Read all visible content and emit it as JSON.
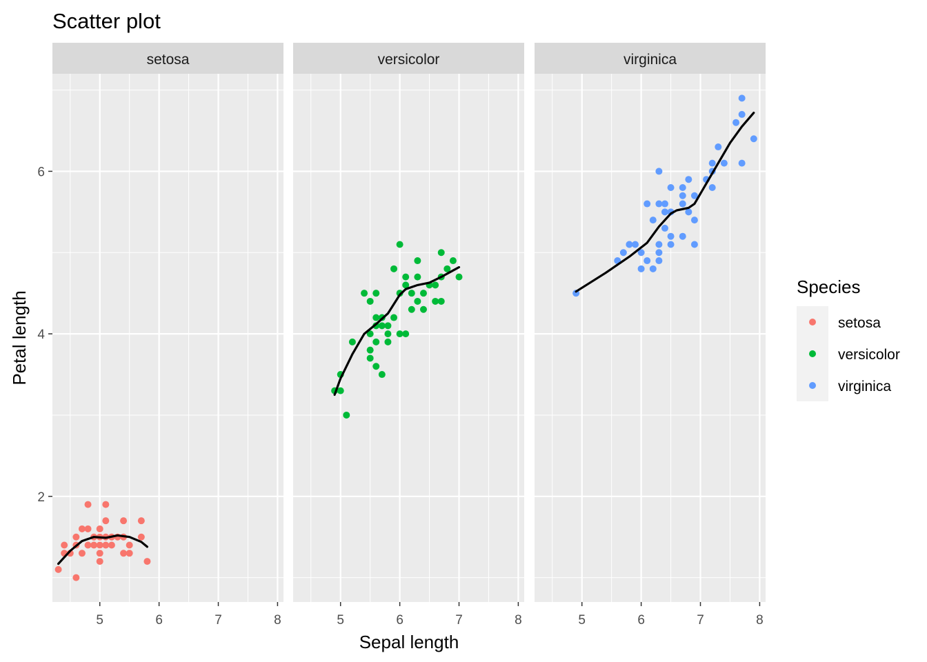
{
  "chart_data": {
    "type": "scatter",
    "title": "Scatter plot",
    "xlabel": "Sepal length",
    "ylabel": "Petal length",
    "xlim": [
      4.2,
      8.1
    ],
    "ylim": [
      0.7,
      7.2
    ],
    "x_ticks": [
      5,
      6,
      7,
      8
    ],
    "x_tick_labels": [
      "5",
      "6",
      "7",
      "8"
    ],
    "y_ticks": [
      2,
      4,
      6
    ],
    "y_tick_labels": [
      "2",
      "4",
      "6"
    ],
    "grid": true,
    "facet_by": "Species",
    "legend": {
      "title": "Species",
      "position": "right"
    },
    "series": [
      {
        "name": "setosa",
        "color": "#F8766D",
        "points": [
          [
            4.3,
            1.1
          ],
          [
            4.4,
            1.3
          ],
          [
            4.4,
            1.4
          ],
          [
            4.5,
            1.3
          ],
          [
            4.6,
            1.0
          ],
          [
            4.6,
            1.4
          ],
          [
            4.6,
            1.5
          ],
          [
            4.7,
            1.3
          ],
          [
            4.7,
            1.6
          ],
          [
            4.8,
            1.4
          ],
          [
            4.8,
            1.6
          ],
          [
            4.8,
            1.9
          ],
          [
            4.9,
            1.4
          ],
          [
            4.9,
            1.5
          ],
          [
            5.0,
            1.2
          ],
          [
            5.0,
            1.3
          ],
          [
            5.0,
            1.4
          ],
          [
            5.0,
            1.5
          ],
          [
            5.0,
            1.6
          ],
          [
            5.1,
            1.4
          ],
          [
            5.1,
            1.5
          ],
          [
            5.1,
            1.7
          ],
          [
            5.1,
            1.9
          ],
          [
            5.2,
            1.4
          ],
          [
            5.2,
            1.5
          ],
          [
            5.3,
            1.5
          ],
          [
            5.4,
            1.3
          ],
          [
            5.4,
            1.5
          ],
          [
            5.4,
            1.7
          ],
          [
            5.5,
            1.3
          ],
          [
            5.5,
            1.4
          ],
          [
            5.7,
            1.5
          ],
          [
            5.7,
            1.7
          ],
          [
            5.8,
            1.2
          ]
        ],
        "smooth": [
          [
            4.3,
            1.17
          ],
          [
            4.5,
            1.33
          ],
          [
            4.7,
            1.45
          ],
          [
            4.9,
            1.5
          ],
          [
            5.1,
            1.49
          ],
          [
            5.3,
            1.52
          ],
          [
            5.5,
            1.5
          ],
          [
            5.7,
            1.44
          ],
          [
            5.8,
            1.38
          ]
        ]
      },
      {
        "name": "versicolor",
        "color": "#00BA38",
        "points": [
          [
            4.9,
            3.3
          ],
          [
            5.0,
            3.3
          ],
          [
            5.0,
            3.5
          ],
          [
            5.1,
            3.0
          ],
          [
            5.2,
            3.9
          ],
          [
            5.4,
            4.5
          ],
          [
            5.5,
            3.7
          ],
          [
            5.5,
            3.8
          ],
          [
            5.5,
            4.0
          ],
          [
            5.5,
            4.4
          ],
          [
            5.6,
            3.6
          ],
          [
            5.6,
            3.9
          ],
          [
            5.6,
            4.1
          ],
          [
            5.6,
            4.2
          ],
          [
            5.6,
            4.5
          ],
          [
            5.7,
            3.5
          ],
          [
            5.7,
            4.1
          ],
          [
            5.7,
            4.2
          ],
          [
            5.8,
            3.9
          ],
          [
            5.8,
            4.0
          ],
          [
            5.8,
            4.1
          ],
          [
            5.9,
            4.2
          ],
          [
            5.9,
            4.8
          ],
          [
            6.0,
            4.0
          ],
          [
            6.0,
            4.5
          ],
          [
            6.0,
            5.1
          ],
          [
            6.1,
            4.0
          ],
          [
            6.1,
            4.6
          ],
          [
            6.1,
            4.7
          ],
          [
            6.2,
            4.3
          ],
          [
            6.2,
            4.5
          ],
          [
            6.3,
            4.4
          ],
          [
            6.3,
            4.7
          ],
          [
            6.3,
            4.9
          ],
          [
            6.4,
            4.3
          ],
          [
            6.4,
            4.5
          ],
          [
            6.5,
            4.6
          ],
          [
            6.6,
            4.4
          ],
          [
            6.6,
            4.6
          ],
          [
            6.7,
            4.4
          ],
          [
            6.7,
            4.7
          ],
          [
            6.7,
            5.0
          ],
          [
            6.8,
            4.8
          ],
          [
            6.9,
            4.9
          ],
          [
            7.0,
            4.7
          ]
        ],
        "smooth": [
          [
            4.9,
            3.25
          ],
          [
            5.0,
            3.45
          ],
          [
            5.2,
            3.75
          ],
          [
            5.4,
            4.0
          ],
          [
            5.6,
            4.12
          ],
          [
            5.8,
            4.25
          ],
          [
            6.0,
            4.48
          ],
          [
            6.1,
            4.55
          ],
          [
            6.3,
            4.6
          ],
          [
            6.5,
            4.63
          ],
          [
            6.7,
            4.7
          ],
          [
            6.9,
            4.78
          ],
          [
            7.0,
            4.82
          ]
        ]
      },
      {
        "name": "virginica",
        "color": "#619CFF",
        "points": [
          [
            4.9,
            4.5
          ],
          [
            5.6,
            4.9
          ],
          [
            5.7,
            5.0
          ],
          [
            5.8,
            5.1
          ],
          [
            5.8,
            5.1
          ],
          [
            5.9,
            5.1
          ],
          [
            6.0,
            4.8
          ],
          [
            6.0,
            5.0
          ],
          [
            6.1,
            4.9
          ],
          [
            6.1,
            5.6
          ],
          [
            6.2,
            4.8
          ],
          [
            6.2,
            5.4
          ],
          [
            6.3,
            4.9
          ],
          [
            6.3,
            5.0
          ],
          [
            6.3,
            5.1
          ],
          [
            6.3,
            5.6
          ],
          [
            6.3,
            6.0
          ],
          [
            6.4,
            5.3
          ],
          [
            6.4,
            5.5
          ],
          [
            6.4,
            5.6
          ],
          [
            6.5,
            5.1
          ],
          [
            6.5,
            5.2
          ],
          [
            6.5,
            5.5
          ],
          [
            6.5,
            5.8
          ],
          [
            6.7,
            5.2
          ],
          [
            6.7,
            5.6
          ],
          [
            6.7,
            5.7
          ],
          [
            6.7,
            5.8
          ],
          [
            6.8,
            5.5
          ],
          [
            6.8,
            5.9
          ],
          [
            6.9,
            5.1
          ],
          [
            6.9,
            5.4
          ],
          [
            6.9,
            5.7
          ],
          [
            7.1,
            5.9
          ],
          [
            7.2,
            5.8
          ],
          [
            7.2,
            6.0
          ],
          [
            7.2,
            6.1
          ],
          [
            7.3,
            6.3
          ],
          [
            7.4,
            6.1
          ],
          [
            7.6,
            6.6
          ],
          [
            7.7,
            6.1
          ],
          [
            7.7,
            6.7
          ],
          [
            7.7,
            6.9
          ],
          [
            7.9,
            6.4
          ]
        ],
        "smooth": [
          [
            4.9,
            4.52
          ],
          [
            5.4,
            4.75
          ],
          [
            5.8,
            4.95
          ],
          [
            6.1,
            5.12
          ],
          [
            6.3,
            5.32
          ],
          [
            6.5,
            5.48
          ],
          [
            6.6,
            5.52
          ],
          [
            6.8,
            5.55
          ],
          [
            6.9,
            5.6
          ],
          [
            7.1,
            5.85
          ],
          [
            7.3,
            6.1
          ],
          [
            7.5,
            6.35
          ],
          [
            7.7,
            6.55
          ],
          [
            7.9,
            6.72
          ]
        ]
      }
    ]
  }
}
